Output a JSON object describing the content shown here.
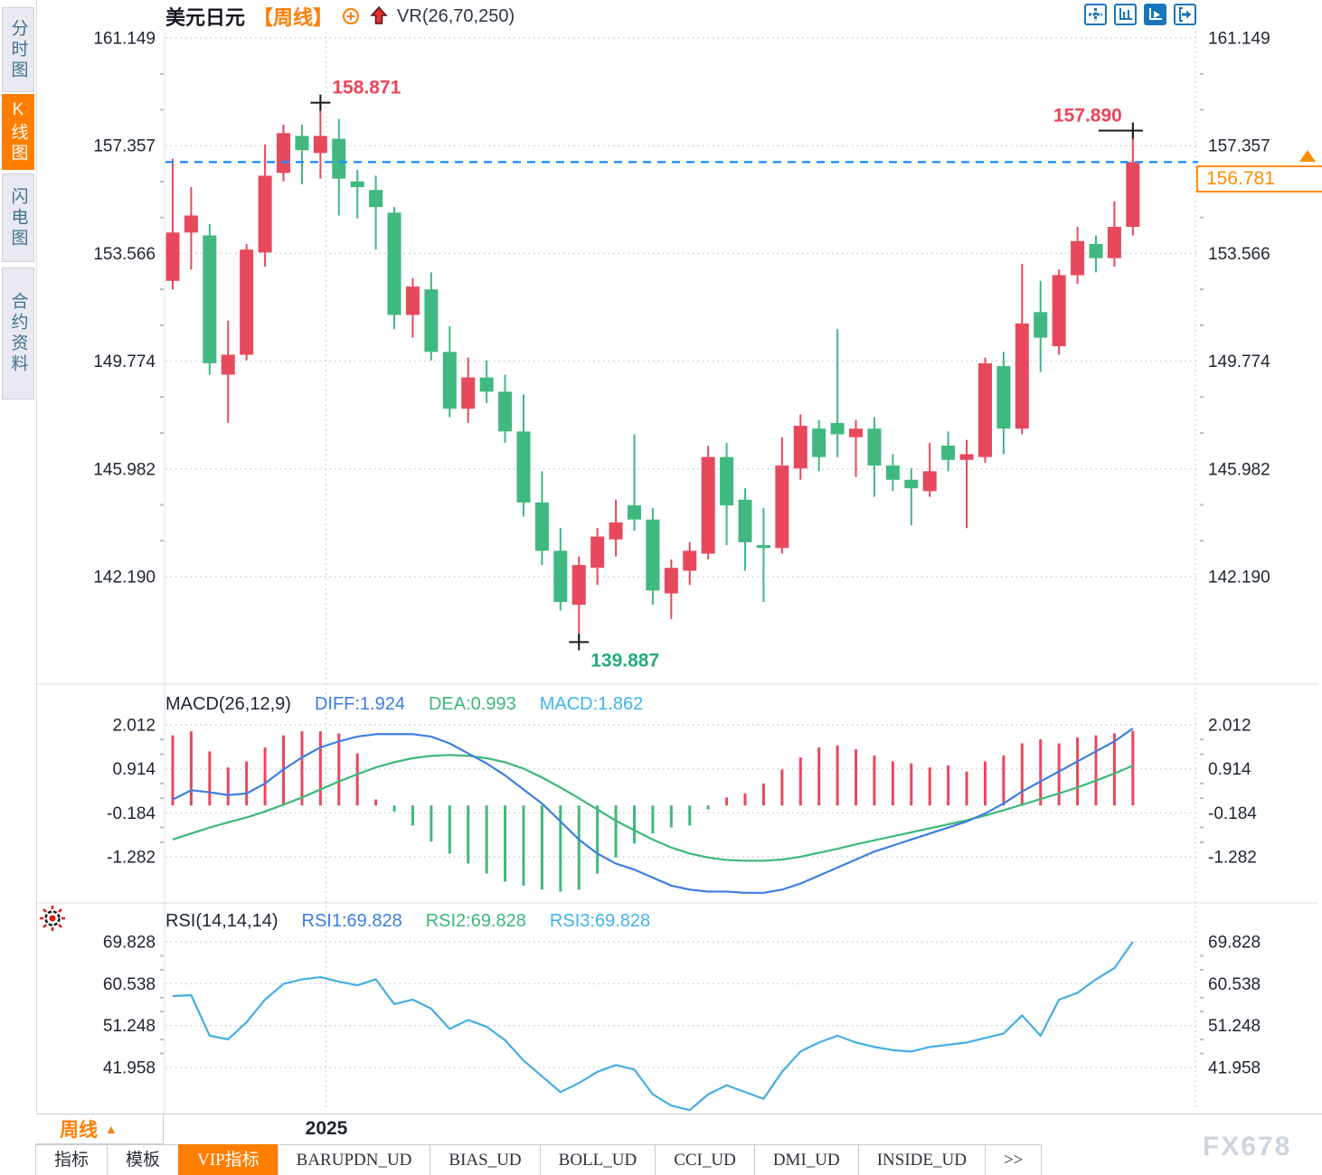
{
  "header": {
    "symbol": "美元日元",
    "period": "【周线】",
    "indicator": "VR(26,70,250)"
  },
  "sidebar": {
    "tabs": [
      {
        "label": "分时图",
        "active": false
      },
      {
        "label": "K线图",
        "active": true
      },
      {
        "label": "闪电图",
        "active": false
      },
      {
        "label": "合约资料",
        "active": false
      }
    ]
  },
  "toolbar": {
    "icons": [
      "move-crosshair",
      "axis-scale",
      "axis-play-active",
      "exit-right"
    ]
  },
  "price_box": {
    "value": "156.781"
  },
  "macd_header": {
    "title": "MACD(26,12,9)",
    "diff": "DIFF:1.924",
    "dea": "DEA:0.993",
    "macd": "MACD:1.862"
  },
  "rsi_header": {
    "title": "RSI(14,14,14)",
    "rsi1": "RSI1:69.828",
    "rsi2": "RSI2:69.828",
    "rsi3": "RSI3:69.828"
  },
  "footer": {
    "period": "周线",
    "period_arrow": "▲",
    "year": "2025",
    "tabs": [
      {
        "label": "指标",
        "active": false
      },
      {
        "label": "模板",
        "active": false
      },
      {
        "label": "VIP指标",
        "active": true
      },
      {
        "label": "BARUPDN_UD",
        "active": false
      },
      {
        "label": "BIAS_UD",
        "active": false
      },
      {
        "label": "BOLL_UD",
        "active": false
      },
      {
        "label": "CCI_UD",
        "active": false
      },
      {
        "label": "DMI_UD",
        "active": false
      },
      {
        "label": "INSIDE_UD",
        "active": false
      },
      {
        "label": ">>",
        "active": false
      }
    ],
    "watermark": "FX678"
  },
  "colors": {
    "up": "#e8485c",
    "down": "#3fb97f",
    "orange": "#ff7e00",
    "diff_line": "#3c7ee0",
    "dea_line": "#3cb878",
    "rsi_line": "#45aee2",
    "dashed_price_line": "#1f8fff",
    "label_red": "#ee4458",
    "label_green": "#27a880",
    "axis_text": "#1c2530",
    "grid": "#c9ced6",
    "cross": "#15181d"
  },
  "chart_data": {
    "type": "candlestick",
    "title": "USDJPY weekly candlestick with MACD and RSI panels",
    "legend_position": "top-left",
    "grid": true,
    "price_axis_ticks": [
      161.149,
      157.357,
      153.566,
      149.774,
      145.982,
      142.19
    ],
    "macd_axis_ticks": [
      2.012,
      0.914,
      -0.184,
      -1.282
    ],
    "rsi_axis_ticks": [
      69.828,
      60.538,
      51.248,
      41.958
    ],
    "current_price": 156.781,
    "x_year_tick": {
      "label": "2025",
      "index": 8.3
    },
    "candles": [
      [
        152.6,
        156.9,
        152.3,
        154.3
      ],
      [
        154.3,
        155.9,
        153.0,
        154.9
      ],
      [
        154.2,
        154.6,
        149.3,
        149.7
      ],
      [
        149.3,
        151.2,
        147.6,
        150.0
      ],
      [
        150.0,
        153.9,
        149.8,
        153.7
      ],
      [
        153.6,
        157.4,
        153.1,
        156.3
      ],
      [
        156.4,
        158.1,
        156.1,
        157.8
      ],
      [
        157.7,
        158.1,
        156.0,
        157.2
      ],
      [
        157.1,
        158.871,
        156.2,
        157.7
      ],
      [
        157.6,
        158.3,
        154.9,
        156.2
      ],
      [
        156.1,
        156.5,
        154.8,
        155.9
      ],
      [
        155.8,
        156.3,
        153.7,
        155.2
      ],
      [
        155.0,
        155.2,
        150.9,
        151.4
      ],
      [
        151.4,
        152.7,
        150.6,
        152.4
      ],
      [
        152.3,
        152.9,
        149.8,
        150.1
      ],
      [
        150.1,
        151.0,
        147.8,
        148.1
      ],
      [
        148.1,
        149.9,
        147.6,
        149.2
      ],
      [
        149.2,
        149.8,
        148.3,
        148.7
      ],
      [
        148.7,
        149.3,
        146.9,
        147.3
      ],
      [
        147.3,
        148.6,
        144.3,
        144.8
      ],
      [
        144.8,
        145.9,
        142.6,
        143.1
      ],
      [
        143.1,
        143.9,
        141.0,
        141.3
      ],
      [
        141.2,
        142.9,
        139.887,
        142.6
      ],
      [
        142.5,
        143.9,
        141.9,
        143.6
      ],
      [
        143.5,
        144.9,
        142.9,
        144.1
      ],
      [
        144.7,
        147.2,
        143.8,
        144.2
      ],
      [
        144.2,
        144.6,
        141.2,
        141.7
      ],
      [
        141.6,
        142.8,
        140.7,
        142.5
      ],
      [
        142.4,
        143.4,
        141.9,
        143.1
      ],
      [
        143.0,
        146.8,
        142.8,
        146.4
      ],
      [
        146.4,
        146.9,
        143.3,
        144.7
      ],
      [
        144.9,
        145.3,
        142.4,
        143.4
      ],
      [
        143.3,
        144.6,
        141.3,
        143.2
      ],
      [
        143.2,
        147.1,
        143.0,
        146.1
      ],
      [
        146.0,
        147.9,
        145.6,
        147.5
      ],
      [
        147.4,
        147.7,
        145.9,
        146.4
      ],
      [
        147.6,
        150.9,
        146.4,
        147.2
      ],
      [
        147.1,
        147.7,
        145.7,
        147.4
      ],
      [
        147.4,
        147.8,
        145.0,
        146.1
      ],
      [
        146.1,
        146.5,
        145.2,
        145.6
      ],
      [
        145.6,
        146.0,
        144.0,
        145.3
      ],
      [
        145.2,
        146.9,
        145.0,
        145.9
      ],
      [
        146.8,
        147.3,
        145.9,
        146.3
      ],
      [
        146.3,
        147.0,
        143.9,
        146.5
      ],
      [
        146.4,
        149.9,
        146.2,
        149.7
      ],
      [
        149.6,
        150.1,
        146.5,
        147.4
      ],
      [
        147.4,
        153.2,
        147.2,
        151.1
      ],
      [
        151.5,
        152.6,
        149.4,
        150.6
      ],
      [
        150.3,
        153.0,
        150.0,
        152.8
      ],
      [
        152.8,
        154.5,
        152.5,
        154.0
      ],
      [
        153.9,
        154.2,
        152.9,
        153.4
      ],
      [
        153.4,
        155.4,
        153.1,
        154.5
      ],
      [
        154.5,
        157.89,
        154.2,
        156.781
      ]
    ],
    "macd": {
      "diff": [
        0.15,
        0.38,
        0.33,
        0.26,
        0.3,
        0.55,
        0.9,
        1.2,
        1.45,
        1.6,
        1.72,
        1.78,
        1.78,
        1.78,
        1.72,
        1.55,
        1.3,
        1.05,
        0.75,
        0.4,
        0.05,
        -0.4,
        -0.85,
        -1.2,
        -1.45,
        -1.6,
        -1.8,
        -2.0,
        -2.1,
        -2.15,
        -2.15,
        -2.18,
        -2.18,
        -2.1,
        -1.95,
        -1.75,
        -1.55,
        -1.35,
        -1.15,
        -1.0,
        -0.85,
        -0.7,
        -0.55,
        -0.4,
        -0.2,
        0.05,
        0.35,
        0.6,
        0.85,
        1.1,
        1.35,
        1.6,
        1.924
      ],
      "dea": [
        -0.85,
        -0.7,
        -0.55,
        -0.42,
        -0.3,
        -0.15,
        0.02,
        0.2,
        0.4,
        0.6,
        0.78,
        0.95,
        1.08,
        1.18,
        1.24,
        1.26,
        1.24,
        1.18,
        1.08,
        0.92,
        0.7,
        0.45,
        0.18,
        -0.1,
        -0.38,
        -0.62,
        -0.85,
        -1.05,
        -1.2,
        -1.3,
        -1.36,
        -1.38,
        -1.38,
        -1.35,
        -1.28,
        -1.18,
        -1.08,
        -0.97,
        -0.87,
        -0.77,
        -0.67,
        -0.57,
        -0.47,
        -0.37,
        -0.25,
        -0.12,
        0.02,
        0.16,
        0.3,
        0.45,
        0.62,
        0.8,
        0.993
      ],
      "hist": [
        1.75,
        1.85,
        1.35,
        0.95,
        1.1,
        1.45,
        1.75,
        1.85,
        1.85,
        1.8,
        1.3,
        0.15,
        -0.15,
        -0.5,
        -0.9,
        -1.2,
        -1.45,
        -1.7,
        -1.9,
        -2.0,
        -2.1,
        -2.15,
        -2.1,
        -1.7,
        -1.3,
        -0.95,
        -0.7,
        -0.55,
        -0.5,
        -0.1,
        0.2,
        0.3,
        0.55,
        0.9,
        1.2,
        1.45,
        1.5,
        1.4,
        1.25,
        1.1,
        1.05,
        0.95,
        1.0,
        0.85,
        1.1,
        1.25,
        1.55,
        1.65,
        1.55,
        1.7,
        1.75,
        1.8,
        1.862
      ]
    },
    "rsi": [
      57.8,
      58.0,
      49.0,
      48.2,
      52.0,
      57.0,
      60.5,
      61.5,
      62.0,
      61.0,
      60.2,
      61.5,
      56.0,
      57.0,
      55.0,
      50.5,
      52.5,
      51.0,
      48.0,
      43.5,
      40.0,
      36.5,
      38.5,
      41.0,
      42.5,
      41.5,
      36.0,
      33.5,
      32.5,
      36.0,
      38.0,
      36.5,
      35.0,
      41.0,
      45.5,
      47.5,
      49.0,
      47.5,
      46.5,
      45.8,
      45.5,
      46.5,
      47.0,
      47.5,
      48.5,
      49.5,
      53.5,
      49.0,
      57.0,
      58.5,
      61.5,
      64.0,
      69.828
    ],
    "annotations": [
      {
        "index": 8,
        "price": 158.871,
        "text": "158.871",
        "type": "high"
      },
      {
        "index": 52,
        "price": 157.89,
        "text": "157.890",
        "type": "high-left"
      },
      {
        "index": 22,
        "price": 139.887,
        "text": "139.887",
        "type": "low"
      }
    ]
  }
}
